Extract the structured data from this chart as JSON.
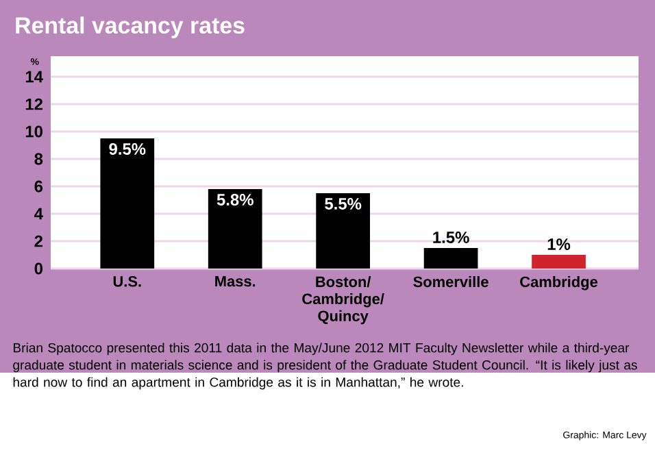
{
  "chart_data": {
    "type": "bar",
    "title": "Rental vacancy rates",
    "ylabel": "%",
    "categories": [
      "U.S.",
      "Mass.",
      "Boston/ Cambridge/ Quincy",
      "Somerville",
      "Cambridge"
    ],
    "values": [
      9.5,
      5.8,
      5.5,
      1.5,
      1
    ],
    "colors": [
      "#000000",
      "#000000",
      "#000000",
      "#000000",
      "#d0242c"
    ],
    "value_labels": [
      "9.5%",
      "5.8%",
      "5.5%",
      "1.5%",
      "1%"
    ],
    "ylim": [
      0,
      15.5
    ],
    "yticks": [
      0,
      2,
      4,
      6,
      8,
      10,
      12,
      14
    ],
    "grid": "y",
    "annotations": [
      "Brian Spatocco presented this 2011 data in the May/June 2012 MIT Faculty Newsletter while a third-year graduate student in materials science and is president of the Graduate Student Council. “It is likely just as hard now to find an apartment in Cambridge as it is in Manhattan,” he wrote.",
      "Graphic: Marc Levy"
    ]
  }
}
